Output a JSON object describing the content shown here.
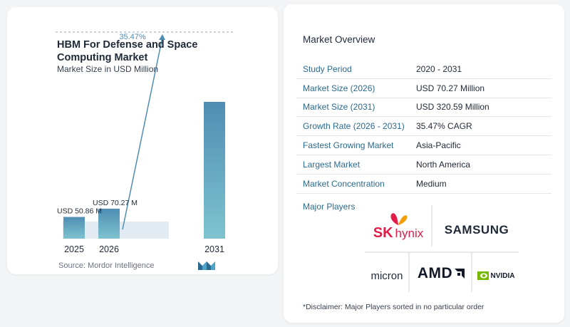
{
  "chart_data": {
    "type": "bar",
    "title": "HBM For Defense and Space Computing Market",
    "subtitle": "Market Size in USD Million",
    "categories": [
      "2025",
      "2026",
      "2031"
    ],
    "values": [
      50.86,
      70.27,
      320.59
    ],
    "data_labels": [
      "USD 50.86 M",
      "USD 70.27 M",
      ""
    ],
    "cagr_label": "35.47%",
    "ylim": [
      0,
      330
    ]
  },
  "source": "Source:  Mordor Intelligence",
  "overview": {
    "title": "Market Overview",
    "rows": [
      {
        "label": "Study Period",
        "value": "2020 - 2031"
      },
      {
        "label": "Market Size (2026)",
        "value": "USD 70.27 Million"
      },
      {
        "label": "Market Size (2031)",
        "value": "USD 320.59 Million"
      },
      {
        "label": "Growth Rate (2026 - 2031)",
        "value": "35.47% CAGR"
      },
      {
        "label": "Fastest Growing Market",
        "value": "Asia-Pacific"
      },
      {
        "label": "Largest Market",
        "value": "North America"
      },
      {
        "label": "Market Concentration",
        "value": "Medium"
      }
    ],
    "players_label": "Major Players",
    "players": [
      "SK hynix",
      "SAMSUNG",
      "micron",
      "AMD",
      "NVIDIA"
    ],
    "disclaimer": "*Disclaimer: Major Players sorted in no particular order"
  },
  "colors": {
    "bar_top": "#4f8db3",
    "bar_bottom": "#7fc3cf",
    "band": "#e3ebf2",
    "label_blue": "#2b6a8e",
    "samsung": "#1f2937",
    "sk_red": "#e11d48",
    "sk_orange": "#f59e0b",
    "nvidia_green": "#76b900"
  }
}
